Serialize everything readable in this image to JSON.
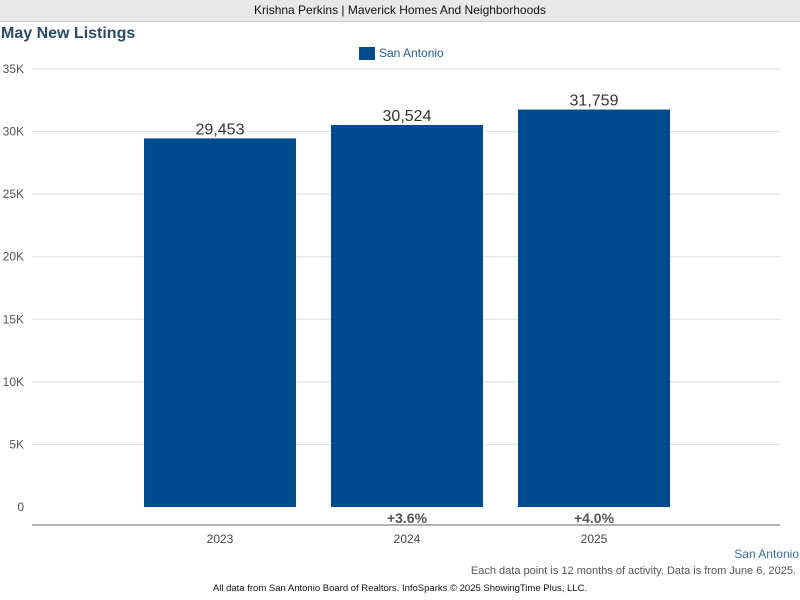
{
  "header": {
    "title": "Krishna Perkins | Maverick Homes And Neighborhoods"
  },
  "chart_data": {
    "type": "bar",
    "title": "May New Listings",
    "categories": [
      "2023",
      "2024",
      "2025"
    ],
    "series": [
      {
        "name": "San Antonio",
        "values": [
          29453,
          30524,
          31759
        ],
        "color": "#004b8d"
      }
    ],
    "value_labels": [
      "29,453",
      "30,524",
      "31,759"
    ],
    "change_labels": [
      "",
      "+3.6%",
      "+4.0%"
    ],
    "ylim": [
      0,
      35000
    ],
    "yticks": [
      0,
      5000,
      10000,
      15000,
      20000,
      25000,
      30000,
      35000
    ],
    "ytick_labels": [
      "0",
      "5K",
      "10K",
      "15K",
      "20K",
      "25K",
      "30K",
      "35K"
    ],
    "grid": true,
    "legend_position": "top-center"
  },
  "region_label": "San Antonio",
  "note": "Each data point is 12 months of activity. Data is from June 6, 2025.",
  "footer": "All data from San Antonio Board of Realtors. InfoSparks © 2025 ShowingTime Plus, LLC."
}
